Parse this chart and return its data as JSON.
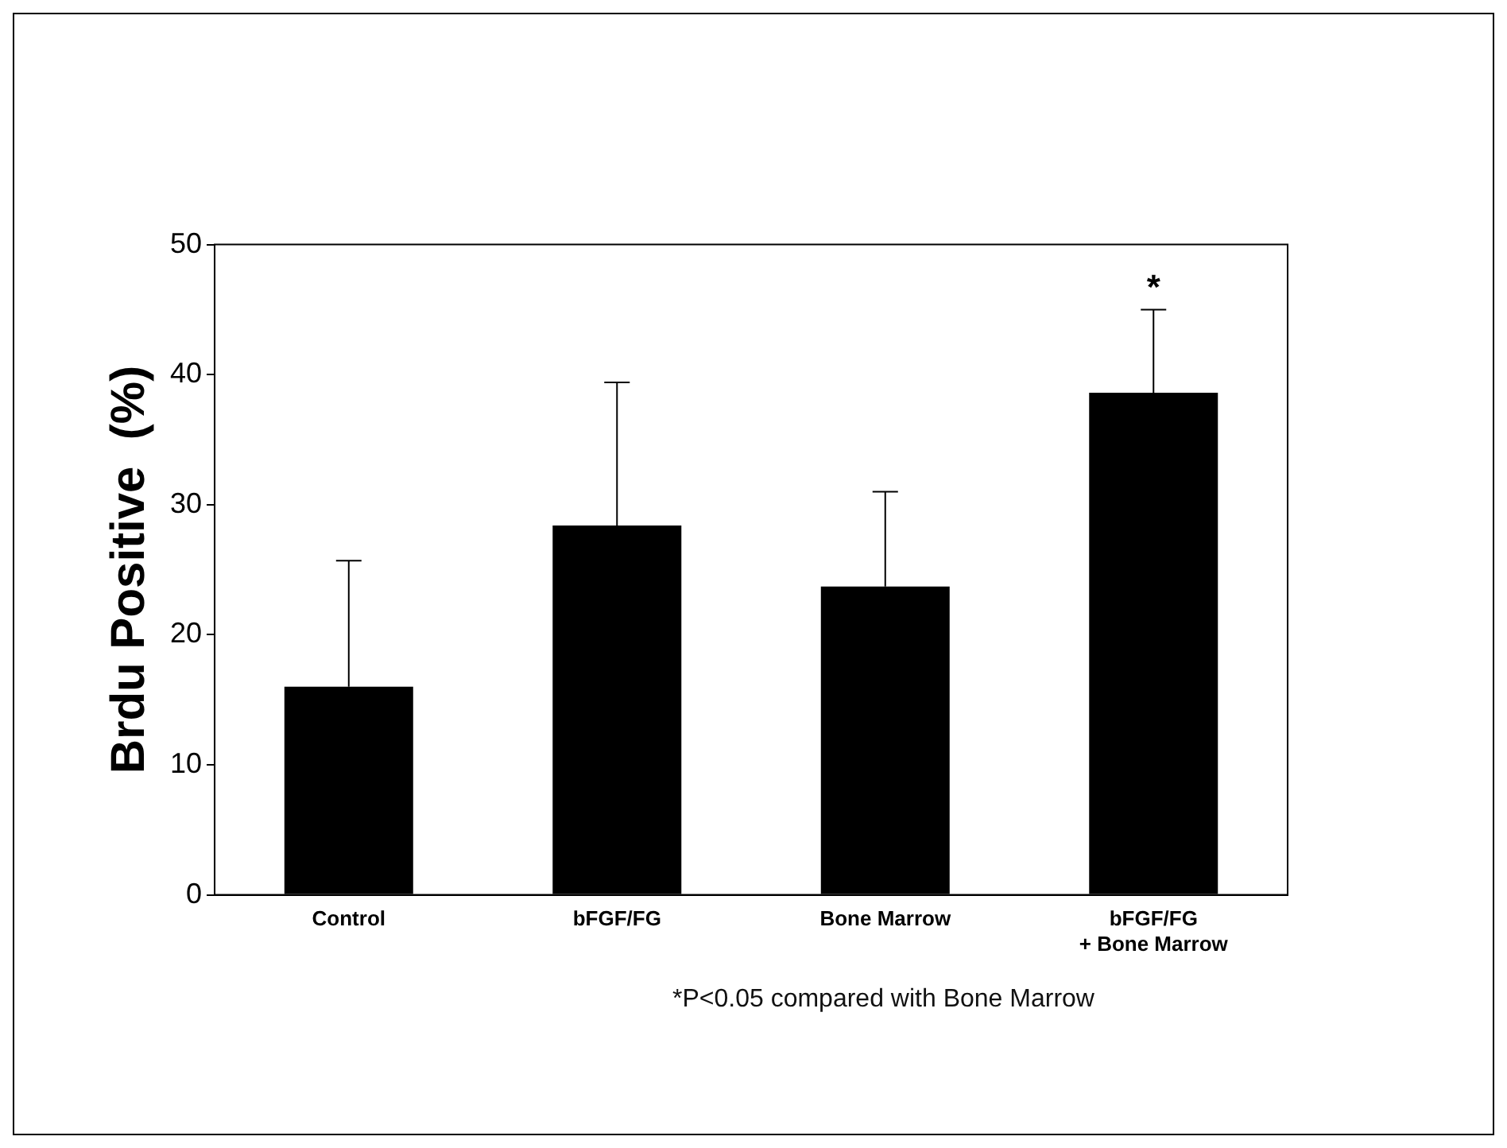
{
  "chart_data": {
    "type": "bar",
    "ylabel": "Brdu Positive  (%)",
    "categories": [
      "Control",
      "bFGF/FG",
      "Bone Marrow",
      "bFGF/FG\n+ Bone Marrow"
    ],
    "values": [
      16.0,
      28.4,
      23.7,
      38.6
    ],
    "errors": [
      [
        16.0,
        25.7
      ],
      [
        28.4,
        39.4
      ],
      [
        23.7,
        31.0
      ],
      [
        38.6,
        45.0
      ]
    ],
    "color": "#000000",
    "ylim": [
      0,
      50
    ],
    "yticks": [
      0,
      10,
      20,
      30,
      40,
      50
    ],
    "grid": false,
    "legend": false,
    "annotations": [
      {
        "text": "*",
        "x": "bFGF/FG\n+ Bone Marrow",
        "y": 45.0
      },
      "*P<0.05 compared with Bone Marrow"
    ]
  }
}
